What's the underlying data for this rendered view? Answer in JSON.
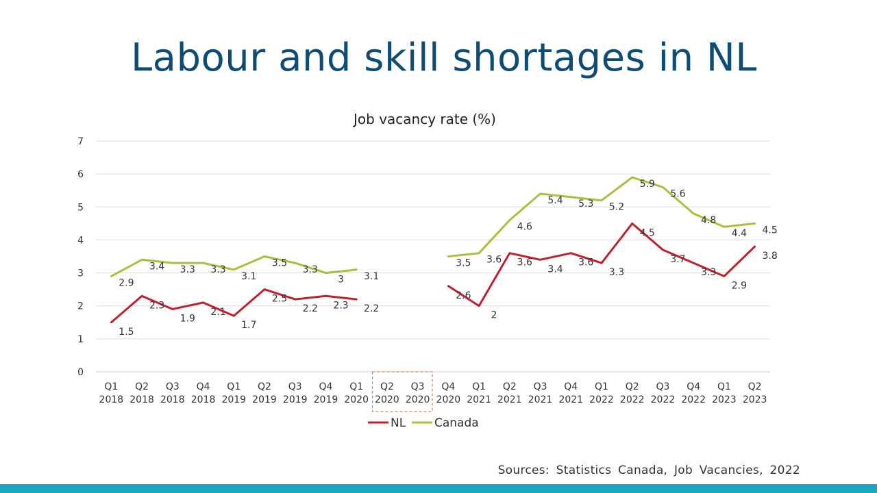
{
  "slide": {
    "title": "Labour and skill shortages in NL",
    "source": "Sources: Statistics Canada, Job Vacancies, 2022",
    "colors": {
      "title": "#0f4c75",
      "bottom_bar": "#1aa6bd",
      "highlight_box": "#e07a5f"
    }
  },
  "chart_data": {
    "type": "line",
    "title": "Job vacancy rate (%)",
    "xlabel": "",
    "ylabel": "",
    "ylim": [
      0,
      7
    ],
    "yticks": [
      "0",
      "1",
      "2",
      "3",
      "4",
      "5",
      "6",
      "7"
    ],
    "grid": true,
    "legend_position": "bottom",
    "categories": [
      [
        "Q1",
        "2018"
      ],
      [
        "Q2",
        "2018"
      ],
      [
        "Q3",
        "2018"
      ],
      [
        "Q4",
        "2018"
      ],
      [
        "Q1",
        "2019"
      ],
      [
        "Q2",
        "2019"
      ],
      [
        "Q3",
        "2019"
      ],
      [
        "Q4",
        "2019"
      ],
      [
        "Q1",
        "2020"
      ],
      [
        "Q2",
        "2020"
      ],
      [
        "Q3",
        "2020"
      ],
      [
        "Q4",
        "2020"
      ],
      [
        "Q1",
        "2021"
      ],
      [
        "Q2",
        "2021"
      ],
      [
        "Q3",
        "2021"
      ],
      [
        "Q4",
        "2021"
      ],
      [
        "Q1",
        "2022"
      ],
      [
        "Q2",
        "2022"
      ],
      [
        "Q3",
        "2022"
      ],
      [
        "Q4",
        "2022"
      ],
      [
        "Q1",
        "2023"
      ],
      [
        "Q2",
        "2023"
      ]
    ],
    "highlighted_gap": [
      "Q2 2020",
      "Q3 2020"
    ],
    "series": [
      {
        "name": "NL",
        "color": "#c0202e",
        "values": [
          1.5,
          2.3,
          1.9,
          2.1,
          1.7,
          2.5,
          2.2,
          2.3,
          2.2,
          null,
          null,
          2.6,
          2.0,
          3.6,
          3.4,
          3.6,
          3.3,
          4.5,
          3.7,
          3.3,
          2.9,
          3.8
        ],
        "labels": [
          "1.5",
          "2.3",
          "1.9",
          "2.1",
          "1.7",
          "2.5",
          "2.2",
          "2.3",
          "2.2",
          "",
          "",
          "2.6",
          "2",
          "3.6",
          "3.4",
          "3.6",
          "3.3",
          "4.5",
          "3.7",
          "3.3",
          "2.9",
          "3.8"
        ]
      },
      {
        "name": "Canada",
        "color": "#a8c03c",
        "values": [
          2.9,
          3.4,
          3.3,
          3.3,
          3.1,
          3.5,
          3.3,
          3.0,
          3.1,
          null,
          null,
          3.5,
          3.6,
          4.6,
          5.4,
          5.3,
          5.2,
          5.9,
          5.6,
          4.8,
          4.4,
          4.5
        ],
        "labels": [
          "2.9",
          "3.4",
          "3.3",
          "3.3",
          "3.1",
          "3.5",
          "3.3",
          "3",
          "3.1",
          "",
          "",
          "3.5",
          "3.6",
          "4.6",
          "5.4",
          "5.3",
          "5.2",
          "5.9",
          "5.6",
          "4.8",
          "4.4",
          "4.5"
        ]
      }
    ]
  }
}
